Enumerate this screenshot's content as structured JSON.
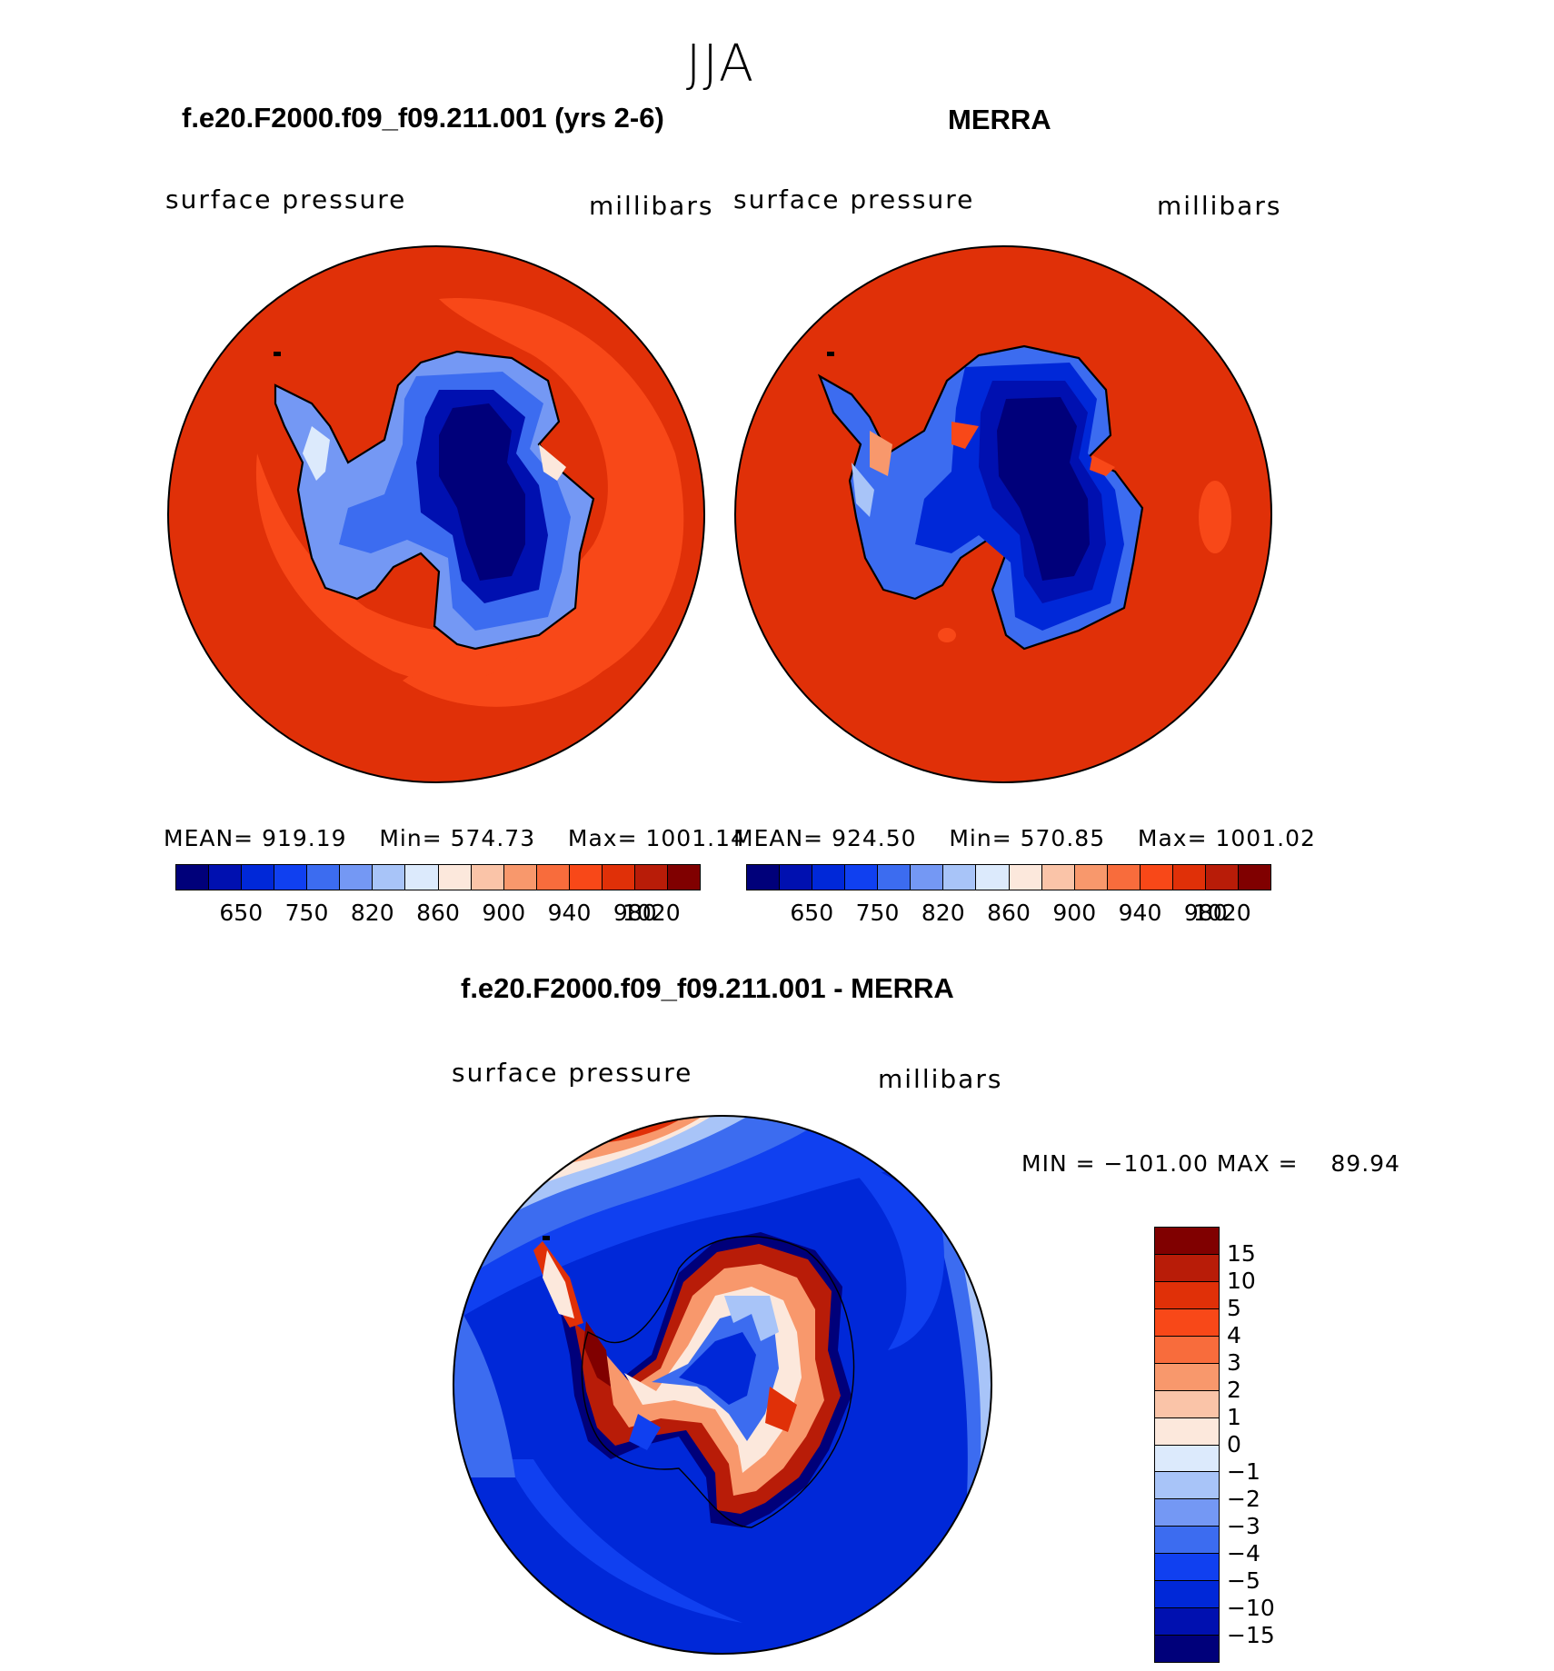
{
  "figure": {
    "season": "JJA"
  },
  "panels": [
    {
      "title": "f.e20.F2000.f09_f09.211.001 (yrs 2-6)",
      "left_label": "surface pressure",
      "right_label": "millibars",
      "stats": {
        "mean_label": "MEAN=",
        "mean": "919.19",
        "min_label": "Min=",
        "min": "574.73",
        "max_label": "Max=",
        "max": "1001.14"
      }
    },
    {
      "title": "MERRA",
      "left_label": "surface pressure",
      "right_label": "millibars",
      "stats": {
        "mean_label": "MEAN=",
        "mean": "924.50",
        "min_label": "Min=",
        "min": "570.85",
        "max_label": "Max=",
        "max": "1001.02"
      }
    },
    {
      "title": "f.e20.F2000.f09_f09.211.001 - MERRA",
      "left_label": "surface pressure",
      "right_label": "millibars",
      "stats": {
        "min_label": "MIN =",
        "min": "−101.00",
        "max_label": "MAX =",
        "max": "89.94"
      }
    }
  ],
  "colorbars": {
    "absolute": {
      "colors": [
        "#00007a",
        "#0010b0",
        "#0028d8",
        "#1040f0",
        "#3c6cf0",
        "#7498f4",
        "#a8c4f8",
        "#dceafc",
        "#fce8dc",
        "#fac4a8",
        "#f8986c",
        "#f86c3c",
        "#f84818",
        "#e03008",
        "#b81c08",
        "#800000"
      ],
      "tick_labels": [
        "650",
        "750",
        "820",
        "860",
        "900",
        "940",
        "980",
        "1020"
      ],
      "tick_boundaries": [
        2,
        4,
        6,
        8,
        10,
        12,
        14,
        15
      ]
    },
    "difference": {
      "colors": [
        "#800000",
        "#b81c08",
        "#e03008",
        "#f84818",
        "#f86c3c",
        "#f8986c",
        "#fac4a8",
        "#fce8dc",
        "#dceafc",
        "#a8c4f8",
        "#7498f4",
        "#3c6cf0",
        "#1040f0",
        "#0028d8",
        "#0010b0",
        "#00007a"
      ],
      "tick_labels": [
        "15",
        "10",
        "5",
        "4",
        "3",
        "2",
        "1",
        "0",
        "−1",
        "−2",
        "−3",
        "−4",
        "−5",
        "−10",
        "−15"
      ]
    }
  },
  "chart_data": [
    {
      "type": "heatmap",
      "title": "f.e20.F2000.f09_f09.211.001 (yrs 2-6)",
      "subtitle": "JJA",
      "variable": "surface pressure",
      "units": "millibars",
      "projection": "south polar stereographic",
      "mean": 919.19,
      "min": 574.73,
      "max": 1001.14,
      "levels": [
        650,
        750,
        820,
        860,
        900,
        940,
        980,
        1020
      ]
    },
    {
      "type": "heatmap",
      "title": "MERRA",
      "subtitle": "JJA",
      "variable": "surface pressure",
      "units": "millibars",
      "projection": "south polar stereographic",
      "mean": 924.5,
      "min": 570.85,
      "max": 1001.02,
      "levels": [
        650,
        750,
        820,
        860,
        900,
        940,
        980,
        1020
      ]
    },
    {
      "type": "heatmap",
      "title": "f.e20.F2000.f09_f09.211.001 - MERRA",
      "subtitle": "JJA",
      "variable": "surface pressure",
      "units": "millibars",
      "projection": "south polar stereographic",
      "min": -101.0,
      "max": 89.94,
      "levels": [
        -15,
        -10,
        -5,
        -4,
        -3,
        -2,
        -1,
        0,
        1,
        2,
        3,
        4,
        5,
        10,
        15
      ]
    }
  ]
}
